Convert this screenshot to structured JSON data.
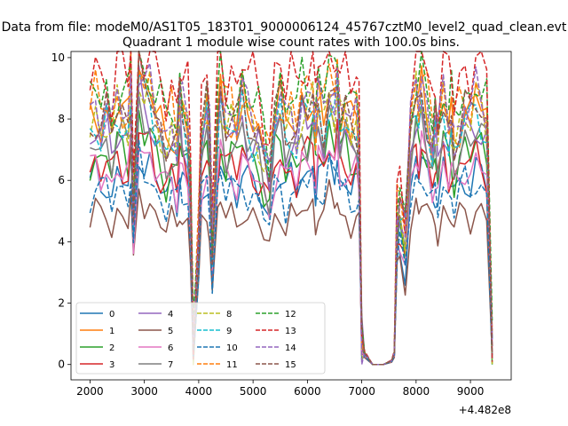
{
  "figure": {
    "suptitle": "Data from file: modeM0/AS1T05_183T01_9000006124_45767cztM0_level2_quad_clean.evt",
    "offset_label": "+4.482e8"
  },
  "chart_data": {
    "type": "line",
    "title": "Quadrant 1 module wise count rates with 100.0s bins.",
    "xlabel": "",
    "ylabel": "",
    "x_offset": 448200000,
    "xlim": [
      1650,
      9750
    ],
    "ylim": [
      -0.5,
      10.2
    ],
    "xticks": [
      2000,
      3000,
      4000,
      5000,
      6000,
      7000,
      8000,
      9000
    ],
    "yticks": [
      0,
      2,
      4,
      6,
      8,
      10
    ],
    "grid": false,
    "legend": {
      "location": "lower left",
      "columns": 4
    },
    "base_profile": [
      [
        2000,
        0.62
      ],
      [
        2100,
        0.66
      ],
      [
        2200,
        0.62
      ],
      [
        2300,
        0.65
      ],
      [
        2400,
        0.59
      ],
      [
        2500,
        0.66
      ],
      [
        2600,
        0.64
      ],
      [
        2700,
        0.62
      ],
      [
        2750,
        0.71
      ],
      [
        2800,
        0.4
      ],
      [
        2900,
        0.76
      ],
      [
        3000,
        0.69
      ],
      [
        3100,
        0.7
      ],
      [
        3200,
        0.64
      ],
      [
        3300,
        0.61
      ],
      [
        3400,
        0.57
      ],
      [
        3500,
        0.62
      ],
      [
        3600,
        0.57
      ],
      [
        3650,
        0.68
      ],
      [
        3700,
        0.64
      ],
      [
        3800,
        0.6
      ],
      [
        3850,
        0.42
      ],
      [
        3900,
        0.05
      ],
      [
        4000,
        0.33
      ],
      [
        4050,
        0.6
      ],
      [
        4150,
        0.66
      ],
      [
        4200,
        0.59
      ],
      [
        4250,
        0.3
      ],
      [
        4350,
        0.64
      ],
      [
        4400,
        0.71
      ],
      [
        4500,
        0.62
      ],
      [
        4600,
        0.65
      ],
      [
        4700,
        0.61
      ],
      [
        4800,
        0.68
      ],
      [
        4900,
        0.63
      ],
      [
        5000,
        0.62
      ],
      [
        5100,
        0.6
      ],
      [
        5200,
        0.55
      ],
      [
        5300,
        0.5
      ],
      [
        5400,
        0.64
      ],
      [
        5500,
        0.67
      ],
      [
        5600,
        0.59
      ],
      [
        5700,
        0.64
      ],
      [
        5800,
        0.6
      ],
      [
        5900,
        0.68
      ],
      [
        6000,
        0.66
      ],
      [
        6100,
        0.69
      ],
      [
        6150,
        0.6
      ],
      [
        6200,
        0.67
      ],
      [
        6300,
        0.63
      ],
      [
        6400,
        0.73
      ],
      [
        6500,
        0.68
      ],
      [
        6550,
        0.72
      ],
      [
        6600,
        0.63
      ],
      [
        6700,
        0.65
      ],
      [
        6800,
        0.6
      ],
      [
        6900,
        0.63
      ],
      [
        6950,
        0.58
      ],
      [
        7000,
        0.07
      ],
      [
        7050,
        0.03
      ],
      [
        7200,
        0.0
      ],
      [
        7400,
        0.0
      ],
      [
        7550,
        0.01
      ],
      [
        7600,
        0.03
      ],
      [
        7650,
        0.38
      ],
      [
        7700,
        0.42
      ],
      [
        7800,
        0.34
      ],
      [
        7900,
        0.61
      ],
      [
        8000,
        0.7
      ],
      [
        8050,
        0.66
      ],
      [
        8100,
        0.71
      ],
      [
        8200,
        0.65
      ],
      [
        8300,
        0.58
      ],
      [
        8350,
        0.62
      ],
      [
        8400,
        0.57
      ],
      [
        8500,
        0.68
      ],
      [
        8600,
        0.61
      ],
      [
        8650,
        0.63
      ],
      [
        8700,
        0.58
      ],
      [
        8800,
        0.63
      ],
      [
        8900,
        0.66
      ],
      [
        9000,
        0.63
      ],
      [
        9100,
        0.68
      ],
      [
        9200,
        0.66
      ],
      [
        9300,
        0.62
      ],
      [
        9400,
        0.05
      ]
    ],
    "series": [
      {
        "name": "0",
        "level": 5.8,
        "color": "#1f77b4",
        "dashed": false
      },
      {
        "name": "1",
        "level": 7.9,
        "color": "#ff7f0e",
        "dashed": false
      },
      {
        "name": "2",
        "level": 6.6,
        "color": "#2ca02c",
        "dashed": false
      },
      {
        "name": "3",
        "level": 6.3,
        "color": "#d62728",
        "dashed": false
      },
      {
        "name": "4",
        "level": 7.3,
        "color": "#9467bd",
        "dashed": false
      },
      {
        "name": "5",
        "level": 4.7,
        "color": "#8c564b",
        "dashed": false
      },
      {
        "name": "6",
        "level": 6.1,
        "color": "#e377c2",
        "dashed": false
      },
      {
        "name": "7",
        "level": 7.0,
        "color": "#7f7f7f",
        "dashed": false
      },
      {
        "name": "8",
        "level": 7.7,
        "color": "#bcbd22",
        "dashed": true
      },
      {
        "name": "9",
        "level": 7.5,
        "color": "#17becf",
        "dashed": true
      },
      {
        "name": "10",
        "level": 5.5,
        "color": "#1f77b4",
        "dashed": true
      },
      {
        "name": "11",
        "level": 8.2,
        "color": "#ff7f0e",
        "dashed": true
      },
      {
        "name": "12",
        "level": 8.5,
        "color": "#2ca02c",
        "dashed": true
      },
      {
        "name": "13",
        "level": 9.2,
        "color": "#d62728",
        "dashed": true
      },
      {
        "name": "14",
        "level": 8.0,
        "color": "#9467bd",
        "dashed": true
      },
      {
        "name": "15",
        "level": 7.8,
        "color": "#8c564b",
        "dashed": true
      }
    ]
  }
}
